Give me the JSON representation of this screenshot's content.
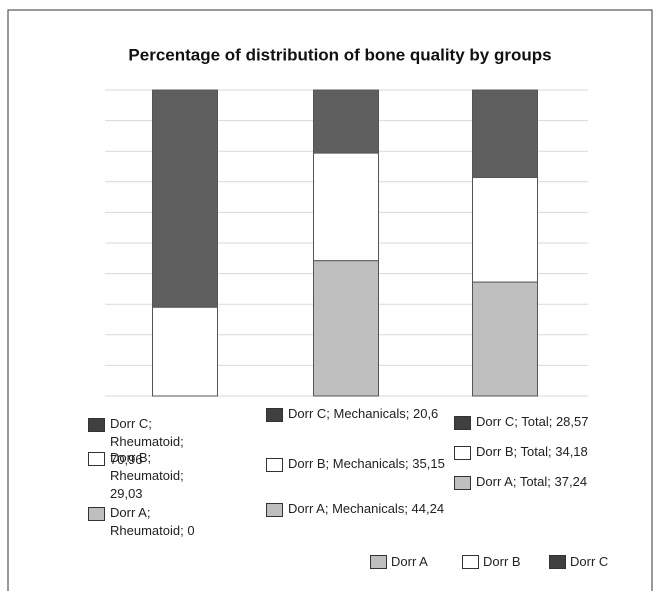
{
  "chart_data": {
    "type": "bar",
    "stacked": true,
    "title": "Percentage of distribution of bone quality by groups",
    "categories": [
      null,
      null,
      null
    ],
    "series": [
      {
        "name": "Dorr A",
        "color": "#bfbfbf",
        "values": [
          0,
          44.24,
          37.24
        ],
        "value_labels": [
          "Dorr A; Rheumatoid; 0",
          "Dorr A; Mechanicals; 44,24",
          "Dorr A; Total; 37,24"
        ]
      },
      {
        "name": "Dorr B",
        "color": "#ffffff",
        "values": [
          29.03,
          35.15,
          34.18
        ],
        "value_labels": [
          "Dorr B; Rheumatoid; 29,03",
          "Dorr B; Mechanicals; 35,15",
          "Dorr B; Total; 34,18"
        ]
      },
      {
        "name": "Dorr C",
        "color": "#5f5f5f",
        "values": [
          70.96,
          20.6,
          28.57
        ],
        "value_labels": [
          "Dorr C; Rheumatoid; 70,96",
          "Dorr C; Mechanicals; 20,6",
          "Dorr C; Total; 28,57"
        ]
      }
    ],
    "ylim": [
      0,
      100
    ],
    "yticks": [
      0,
      10,
      20,
      30,
      40,
      50,
      60,
      70,
      80,
      90,
      100
    ],
    "grid": true
  }
}
